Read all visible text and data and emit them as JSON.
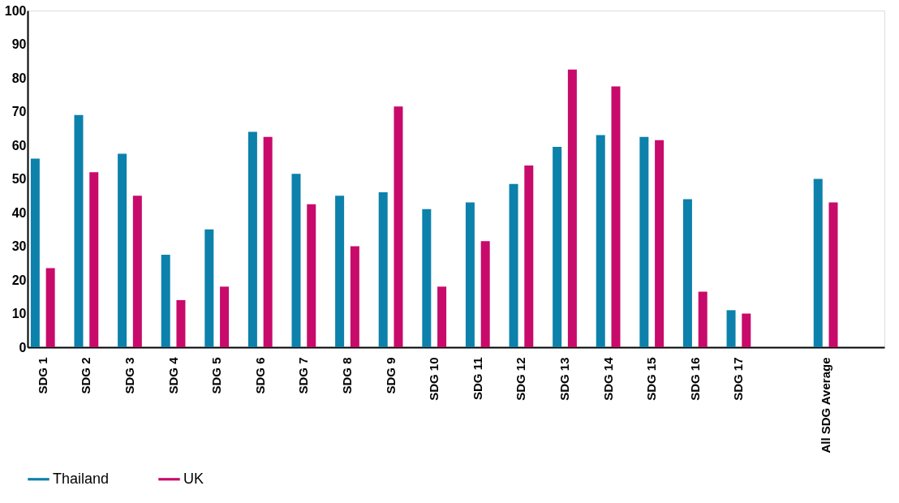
{
  "chart_data": {
    "type": "bar",
    "categories": [
      "SDG 1",
      "SDG 2",
      "SDG 3",
      "SDG 4",
      "SDG 5",
      "SDG 6",
      "SDG 7",
      "SDG 8",
      "SDG 9",
      "SDG 10",
      "SDG 11",
      "SDG 12",
      "SDG 13",
      "SDG 14",
      "SDG 15",
      "SDG 16",
      "SDG 17",
      null,
      "All SDG Average",
      null
    ],
    "series": [
      {
        "name": "Thailand",
        "color": "#0c81ab",
        "values": [
          56,
          69,
          57.5,
          27.5,
          35,
          64,
          51.5,
          45,
          46,
          41,
          43,
          48.5,
          59.5,
          63,
          62.5,
          44,
          11,
          null,
          50,
          null
        ]
      },
      {
        "name": "UK",
        "color": "#c80a6b",
        "values": [
          23.5,
          52,
          45,
          14,
          18,
          62.5,
          42.5,
          30,
          71.5,
          18,
          31.5,
          54,
          82.5,
          77.5,
          61.5,
          16.5,
          10,
          null,
          43,
          null
        ]
      }
    ],
    "ylim": [
      0,
      100
    ],
    "yticks": [
      0,
      10,
      20,
      30,
      40,
      50,
      60,
      70,
      80,
      90,
      100
    ],
    "grid": false,
    "legend": "bottom"
  }
}
